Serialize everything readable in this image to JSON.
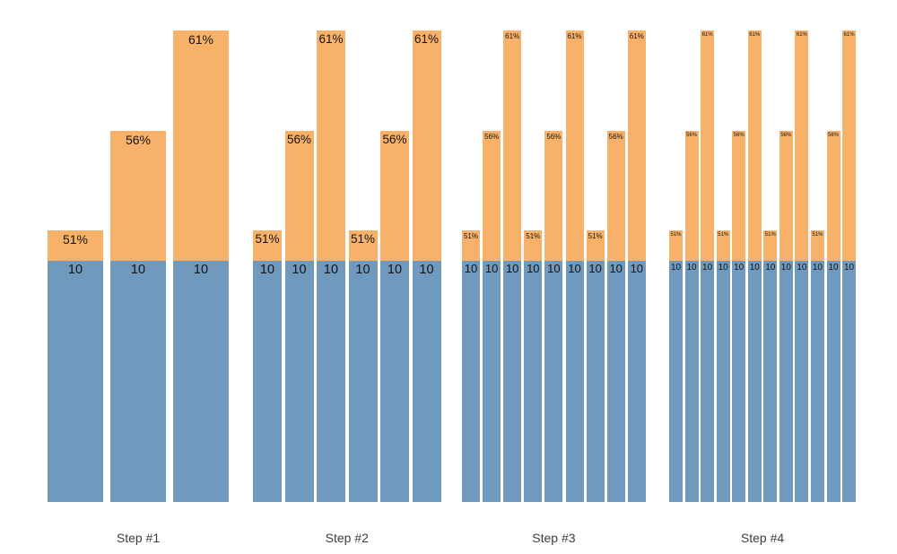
{
  "colors": {
    "bar_base": "#6f99bd",
    "bar_top": "#f7b169",
    "value_label": "#141414",
    "axis_label": "#3d3d3d",
    "background": "#ffffff"
  },
  "chart_data": {
    "type": "bar",
    "stacked": true,
    "grid": false,
    "legend": "none",
    "title": "",
    "xlabel": "",
    "ylabel": "",
    "base_value": 10,
    "base_label": "10",
    "pct_sequence": [
      "51%",
      "56%",
      "61%"
    ],
    "groups": [
      {
        "label": "Step #1",
        "bars": [
          {
            "base": 10,
            "base_label": "10",
            "pct": 51,
            "pct_label": "51%"
          },
          {
            "base": 10,
            "base_label": "10",
            "pct": 56,
            "pct_label": "56%"
          },
          {
            "base": 10,
            "base_label": "10",
            "pct": 61,
            "pct_label": "61%"
          }
        ]
      },
      {
        "label": "Step #2",
        "bars": [
          {
            "base": 10,
            "base_label": "10",
            "pct": 51,
            "pct_label": "51%"
          },
          {
            "base": 10,
            "base_label": "10",
            "pct": 56,
            "pct_label": "56%"
          },
          {
            "base": 10,
            "base_label": "10",
            "pct": 61,
            "pct_label": "61%"
          },
          {
            "base": 10,
            "base_label": "10",
            "pct": 51,
            "pct_label": "51%"
          },
          {
            "base": 10,
            "base_label": "10",
            "pct": 56,
            "pct_label": "56%"
          },
          {
            "base": 10,
            "base_label": "10",
            "pct": 61,
            "pct_label": "61%"
          }
        ]
      },
      {
        "label": "Step #3",
        "bars": [
          {
            "base": 10,
            "base_label": "10",
            "pct": 51,
            "pct_label": "51%"
          },
          {
            "base": 10,
            "base_label": "10",
            "pct": 56,
            "pct_label": "56%"
          },
          {
            "base": 10,
            "base_label": "10",
            "pct": 61,
            "pct_label": "61%"
          },
          {
            "base": 10,
            "base_label": "10",
            "pct": 51,
            "pct_label": "51%"
          },
          {
            "base": 10,
            "base_label": "10",
            "pct": 56,
            "pct_label": "56%"
          },
          {
            "base": 10,
            "base_label": "10",
            "pct": 61,
            "pct_label": "61%"
          },
          {
            "base": 10,
            "base_label": "10",
            "pct": 51,
            "pct_label": "51%"
          },
          {
            "base": 10,
            "base_label": "10",
            "pct": 56,
            "pct_label": "56%"
          },
          {
            "base": 10,
            "base_label": "10",
            "pct": 61,
            "pct_label": "61%"
          }
        ]
      },
      {
        "label": "Step #4",
        "bars": [
          {
            "base": 10,
            "base_label": "10",
            "pct": 51,
            "pct_label": "51%"
          },
          {
            "base": 10,
            "base_label": "10",
            "pct": 56,
            "pct_label": "56%"
          },
          {
            "base": 10,
            "base_label": "10",
            "pct": 61,
            "pct_label": "61%"
          },
          {
            "base": 10,
            "base_label": "10",
            "pct": 51,
            "pct_label": "51%"
          },
          {
            "base": 10,
            "base_label": "10",
            "pct": 56,
            "pct_label": "56%"
          },
          {
            "base": 10,
            "base_label": "10",
            "pct": 61,
            "pct_label": "61%"
          },
          {
            "base": 10,
            "base_label": "10",
            "pct": 51,
            "pct_label": "51%"
          },
          {
            "base": 10,
            "base_label": "10",
            "pct": 56,
            "pct_label": "56%"
          },
          {
            "base": 10,
            "base_label": "10",
            "pct": 61,
            "pct_label": "61%"
          },
          {
            "base": 10,
            "base_label": "10",
            "pct": 51,
            "pct_label": "51%"
          },
          {
            "base": 10,
            "base_label": "10",
            "pct": 56,
            "pct_label": "56%"
          },
          {
            "base": 10,
            "base_label": "10",
            "pct": 61,
            "pct_label": "61%"
          }
        ]
      }
    ]
  }
}
